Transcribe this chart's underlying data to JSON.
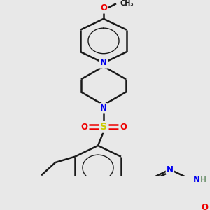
{
  "background_color": "#e8e8e8",
  "bond_color": "#1a1a1a",
  "bond_width": 1.8,
  "atom_colors": {
    "N": "#0000ee",
    "O": "#ee0000",
    "S": "#cccc00",
    "H": "#7a9a7a",
    "C": "#1a1a1a"
  },
  "figsize": [
    3.0,
    3.0
  ],
  "dpi": 100
}
